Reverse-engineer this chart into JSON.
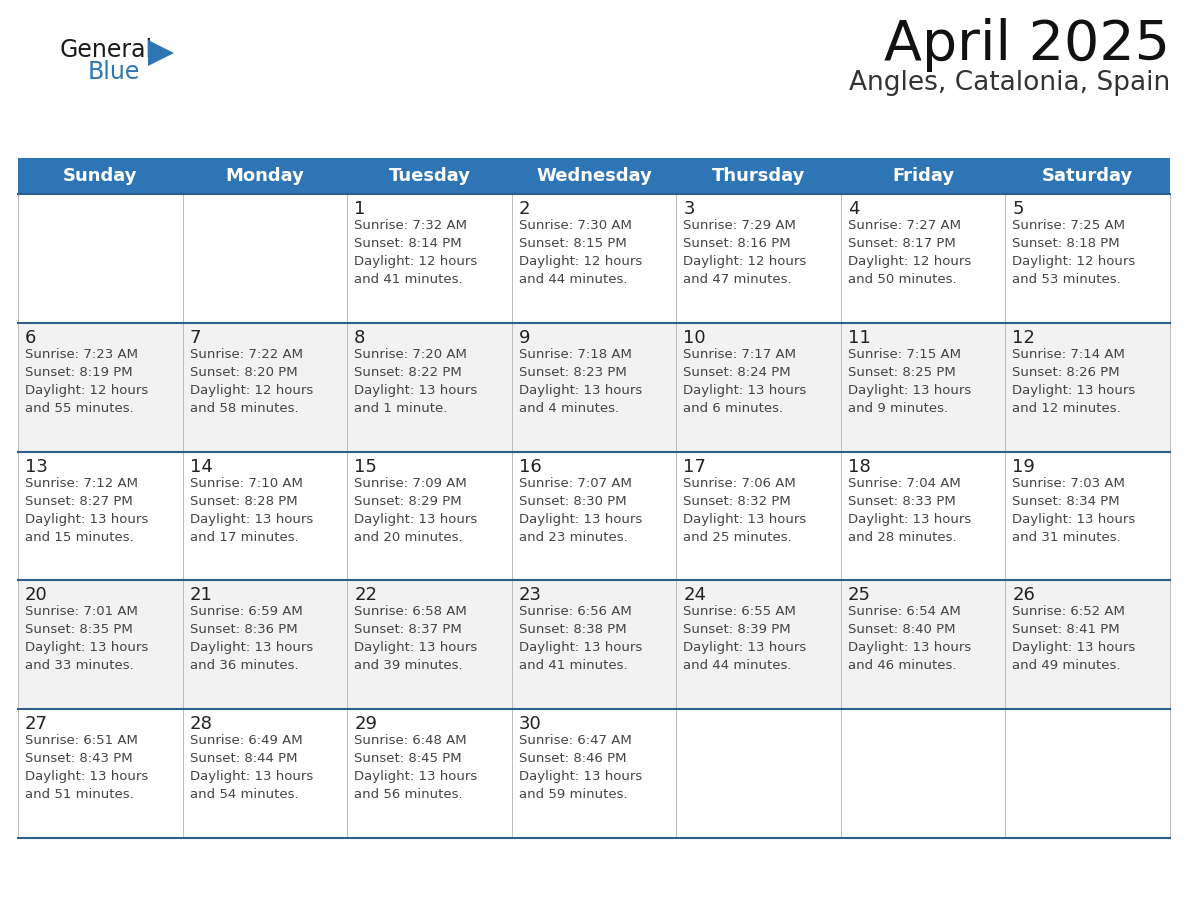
{
  "title": "April 2025",
  "subtitle": "Angles, Catalonia, Spain",
  "header_color": "#2E75B6",
  "header_text_color": "#FFFFFF",
  "cell_bg_color": "#FFFFFF",
  "cell_alt_bg_color": "#F2F2F2",
  "cell_text_color": "#444444",
  "day_num_color": "#222222",
  "grid_line_color": "#BBBBBB",
  "row_divider_color": "#2E5F8A",
  "logo_general_color": "#1A1A1A",
  "logo_blue_color": "#2E75B6",
  "days_of_week": [
    "Sunday",
    "Monday",
    "Tuesday",
    "Wednesday",
    "Thursday",
    "Friday",
    "Saturday"
  ],
  "weeks": [
    [
      {
        "day": "",
        "info": ""
      },
      {
        "day": "",
        "info": ""
      },
      {
        "day": "1",
        "info": "Sunrise: 7:32 AM\nSunset: 8:14 PM\nDaylight: 12 hours\nand 41 minutes."
      },
      {
        "day": "2",
        "info": "Sunrise: 7:30 AM\nSunset: 8:15 PM\nDaylight: 12 hours\nand 44 minutes."
      },
      {
        "day": "3",
        "info": "Sunrise: 7:29 AM\nSunset: 8:16 PM\nDaylight: 12 hours\nand 47 minutes."
      },
      {
        "day": "4",
        "info": "Sunrise: 7:27 AM\nSunset: 8:17 PM\nDaylight: 12 hours\nand 50 minutes."
      },
      {
        "day": "5",
        "info": "Sunrise: 7:25 AM\nSunset: 8:18 PM\nDaylight: 12 hours\nand 53 minutes."
      }
    ],
    [
      {
        "day": "6",
        "info": "Sunrise: 7:23 AM\nSunset: 8:19 PM\nDaylight: 12 hours\nand 55 minutes."
      },
      {
        "day": "7",
        "info": "Sunrise: 7:22 AM\nSunset: 8:20 PM\nDaylight: 12 hours\nand 58 minutes."
      },
      {
        "day": "8",
        "info": "Sunrise: 7:20 AM\nSunset: 8:22 PM\nDaylight: 13 hours\nand 1 minute."
      },
      {
        "day": "9",
        "info": "Sunrise: 7:18 AM\nSunset: 8:23 PM\nDaylight: 13 hours\nand 4 minutes."
      },
      {
        "day": "10",
        "info": "Sunrise: 7:17 AM\nSunset: 8:24 PM\nDaylight: 13 hours\nand 6 minutes."
      },
      {
        "day": "11",
        "info": "Sunrise: 7:15 AM\nSunset: 8:25 PM\nDaylight: 13 hours\nand 9 minutes."
      },
      {
        "day": "12",
        "info": "Sunrise: 7:14 AM\nSunset: 8:26 PM\nDaylight: 13 hours\nand 12 minutes."
      }
    ],
    [
      {
        "day": "13",
        "info": "Sunrise: 7:12 AM\nSunset: 8:27 PM\nDaylight: 13 hours\nand 15 minutes."
      },
      {
        "day": "14",
        "info": "Sunrise: 7:10 AM\nSunset: 8:28 PM\nDaylight: 13 hours\nand 17 minutes."
      },
      {
        "day": "15",
        "info": "Sunrise: 7:09 AM\nSunset: 8:29 PM\nDaylight: 13 hours\nand 20 minutes."
      },
      {
        "day": "16",
        "info": "Sunrise: 7:07 AM\nSunset: 8:30 PM\nDaylight: 13 hours\nand 23 minutes."
      },
      {
        "day": "17",
        "info": "Sunrise: 7:06 AM\nSunset: 8:32 PM\nDaylight: 13 hours\nand 25 minutes."
      },
      {
        "day": "18",
        "info": "Sunrise: 7:04 AM\nSunset: 8:33 PM\nDaylight: 13 hours\nand 28 minutes."
      },
      {
        "day": "19",
        "info": "Sunrise: 7:03 AM\nSunset: 8:34 PM\nDaylight: 13 hours\nand 31 minutes."
      }
    ],
    [
      {
        "day": "20",
        "info": "Sunrise: 7:01 AM\nSunset: 8:35 PM\nDaylight: 13 hours\nand 33 minutes."
      },
      {
        "day": "21",
        "info": "Sunrise: 6:59 AM\nSunset: 8:36 PM\nDaylight: 13 hours\nand 36 minutes."
      },
      {
        "day": "22",
        "info": "Sunrise: 6:58 AM\nSunset: 8:37 PM\nDaylight: 13 hours\nand 39 minutes."
      },
      {
        "day": "23",
        "info": "Sunrise: 6:56 AM\nSunset: 8:38 PM\nDaylight: 13 hours\nand 41 minutes."
      },
      {
        "day": "24",
        "info": "Sunrise: 6:55 AM\nSunset: 8:39 PM\nDaylight: 13 hours\nand 44 minutes."
      },
      {
        "day": "25",
        "info": "Sunrise: 6:54 AM\nSunset: 8:40 PM\nDaylight: 13 hours\nand 46 minutes."
      },
      {
        "day": "26",
        "info": "Sunrise: 6:52 AM\nSunset: 8:41 PM\nDaylight: 13 hours\nand 49 minutes."
      }
    ],
    [
      {
        "day": "27",
        "info": "Sunrise: 6:51 AM\nSunset: 8:43 PM\nDaylight: 13 hours\nand 51 minutes."
      },
      {
        "day": "28",
        "info": "Sunrise: 6:49 AM\nSunset: 8:44 PM\nDaylight: 13 hours\nand 54 minutes."
      },
      {
        "day": "29",
        "info": "Sunrise: 6:48 AM\nSunset: 8:45 PM\nDaylight: 13 hours\nand 56 minutes."
      },
      {
        "day": "30",
        "info": "Sunrise: 6:47 AM\nSunset: 8:46 PM\nDaylight: 13 hours\nand 59 minutes."
      },
      {
        "day": "",
        "info": ""
      },
      {
        "day": "",
        "info": ""
      },
      {
        "day": "",
        "info": ""
      }
    ]
  ],
  "figsize": [
    11.88,
    9.18
  ],
  "dpi": 100
}
